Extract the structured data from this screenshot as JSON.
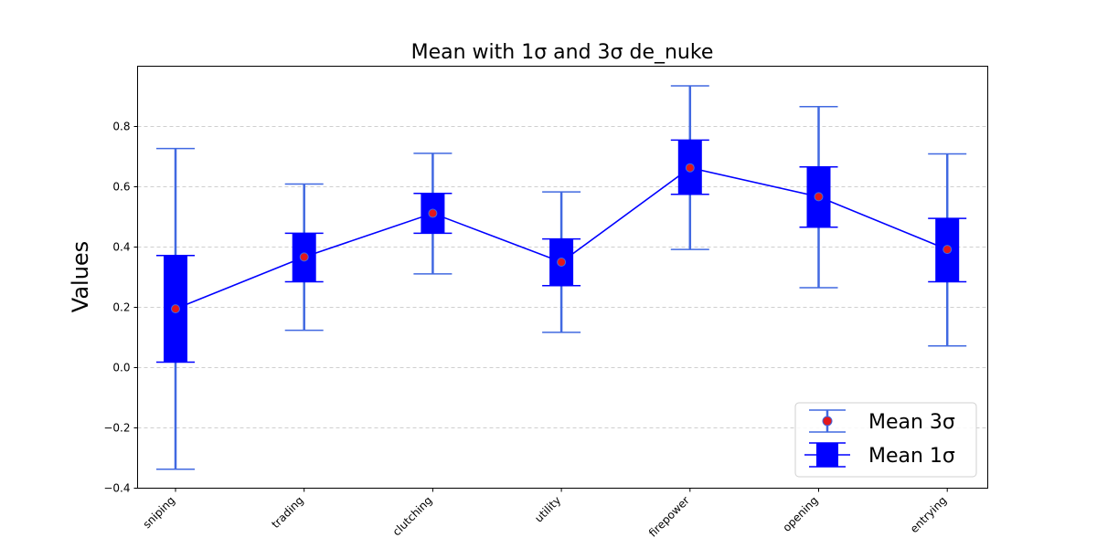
{
  "chart_data": {
    "type": "errorbar",
    "title": "Mean with 1σ and 3σ de_nuke",
    "xlabel": "",
    "ylabel": "Values",
    "categories": [
      "sniping",
      "trading",
      "clutching",
      "utility",
      "firepower",
      "opening",
      "entrying"
    ],
    "mean": [
      0.195,
      0.367,
      0.512,
      0.35,
      0.663,
      0.567,
      0.392
    ],
    "sigma1_low": [
      0.018,
      0.285,
      0.446,
      0.272,
      0.575,
      0.466,
      0.285
    ],
    "sigma1_high": [
      0.372,
      0.446,
      0.578,
      0.427,
      0.755,
      0.666,
      0.495
    ],
    "sigma3_low": [
      -0.337,
      0.124,
      0.311,
      0.117,
      0.392,
      0.265,
      0.072
    ],
    "sigma3_high": [
      0.727,
      0.609,
      0.711,
      0.583,
      0.935,
      0.866,
      0.709
    ],
    "ylim": [
      -0.4,
      1.0
    ],
    "yticks": [
      -0.4,
      -0.2,
      0.0,
      0.2,
      0.4,
      0.6,
      0.8
    ],
    "ytick_labels": [
      "−0.4",
      "−0.2",
      "0.0",
      "0.2",
      "0.4",
      "0.6",
      "0.8"
    ],
    "grid": "y-dashed",
    "legend_position": "lower-right",
    "legend": [
      {
        "label": "Mean 3σ"
      },
      {
        "label": "Mean 1σ"
      }
    ],
    "colors": {
      "sigma3": "#4169e1",
      "sigma1": "#0000ff",
      "mean_line": "#0000ff",
      "marker": "#e3171b",
      "grid": "#c0c0c0"
    }
  }
}
